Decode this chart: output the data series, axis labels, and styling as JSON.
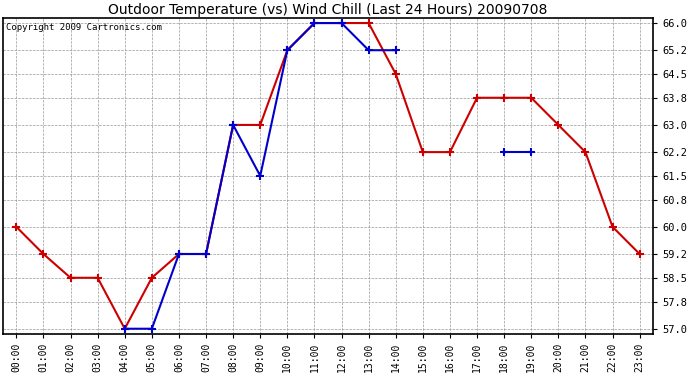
{
  "title": "Outdoor Temperature (vs) Wind Chill (Last 24 Hours) 20090708",
  "copyright": "Copyright 2009 Cartronics.com",
  "hours": [
    "00:00",
    "01:00",
    "02:00",
    "03:00",
    "04:00",
    "05:00",
    "06:00",
    "07:00",
    "08:00",
    "09:00",
    "10:00",
    "11:00",
    "12:00",
    "13:00",
    "14:00",
    "15:00",
    "16:00",
    "17:00",
    "18:00",
    "19:00",
    "20:00",
    "21:00",
    "22:00",
    "23:00"
  ],
  "temp": [
    60.0,
    59.2,
    58.5,
    58.5,
    57.0,
    58.5,
    59.2,
    59.2,
    63.0,
    63.0,
    65.2,
    66.0,
    66.0,
    66.0,
    64.5,
    62.2,
    62.2,
    63.8,
    63.8,
    63.8,
    63.0,
    62.2,
    60.0,
    59.2
  ],
  "wind_chill": [
    null,
    null,
    null,
    null,
    57.0,
    57.0,
    59.2,
    59.2,
    63.0,
    61.5,
    65.2,
    66.0,
    66.0,
    65.2,
    65.2,
    null,
    null,
    null,
    62.2,
    62.2,
    null,
    null,
    null,
    null
  ],
  "wind_chill_segments": [
    [
      4,
      5,
      6,
      7,
      8,
      9,
      10,
      11,
      12,
      13,
      14
    ],
    [
      18,
      19
    ]
  ],
  "temp_color": "#cc0000",
  "wind_color": "#0000cc",
  "marker": "+",
  "markersize": 6,
  "markeredgewidth": 1.5,
  "linewidth": 1.5,
  "ylim": [
    57.0,
    66.0
  ],
  "yticks": [
    57.0,
    57.8,
    58.5,
    59.2,
    60.0,
    60.8,
    61.5,
    62.2,
    63.0,
    63.8,
    64.5,
    65.2,
    66.0
  ],
  "background_color": "#ffffff",
  "grid_color": "#999999",
  "title_fontsize": 10,
  "copyright_fontsize": 6.5,
  "figwidth": 6.9,
  "figheight": 3.75,
  "dpi": 100
}
